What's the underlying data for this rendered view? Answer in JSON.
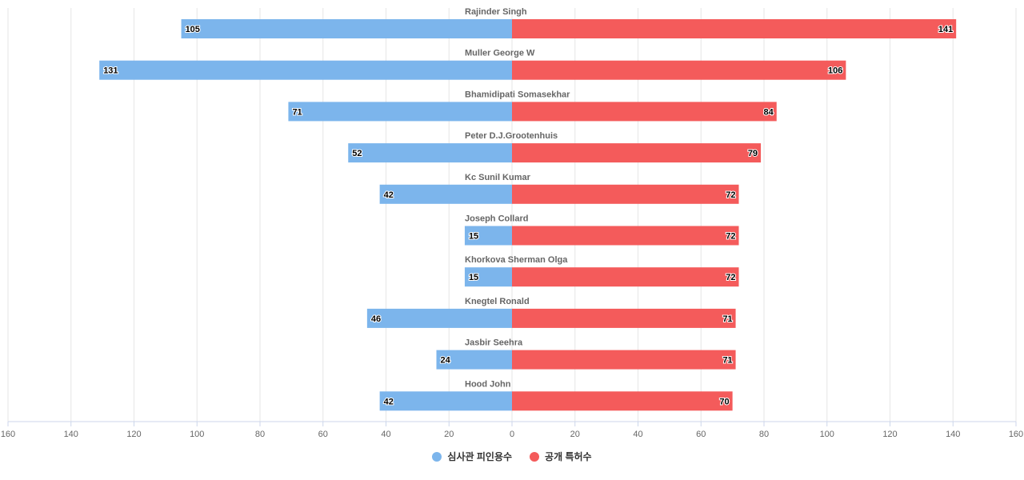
{
  "chart_data": {
    "type": "bar",
    "orientation": "horizontal-diverging",
    "categories": [
      "Rajinder Singh",
      "Muller George W",
      "Bhamidipati Somasekhar",
      "Peter D.J.Grootenhuis",
      "Kc Sunil Kumar",
      "Joseph Collard",
      "Khorkova Sherman Olga",
      "Knegtel Ronald",
      "Jasbir Seehra",
      "Hood John"
    ],
    "series": [
      {
        "name": "심사관 피인용수",
        "color": "#7cb5ec",
        "side": "left",
        "values": [
          105,
          131,
          71,
          52,
          42,
          15,
          15,
          46,
          24,
          42
        ]
      },
      {
        "name": "공개 특허수",
        "color": "#f45b5b",
        "side": "right",
        "values": [
          141,
          106,
          84,
          79,
          72,
          72,
          72,
          71,
          71,
          70
        ]
      }
    ],
    "xlim": [
      -160,
      160
    ],
    "xticks": [
      "160",
      "140",
      "120",
      "100",
      "80",
      "60",
      "40",
      "20",
      "0",
      "20",
      "40",
      "60",
      "80",
      "100",
      "120",
      "140",
      "160"
    ],
    "grid": true,
    "legend_position": "bottom-center",
    "title": "",
    "xlabel": "",
    "ylabel": ""
  }
}
